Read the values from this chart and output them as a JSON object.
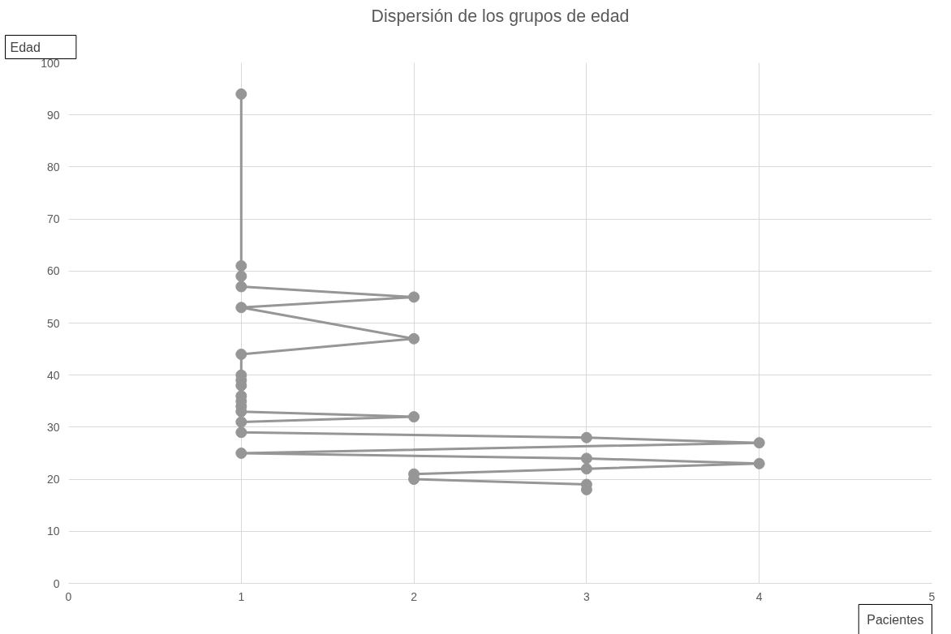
{
  "chart_data": {
    "type": "line",
    "title": "Dispersión de los grupos de edad",
    "xlabel": "Pacientes",
    "ylabel": "Edad",
    "x": [
      1,
      1,
      1,
      1,
      2,
      1,
      2,
      1,
      1,
      1,
      1,
      1,
      1,
      1,
      1,
      2,
      1,
      1,
      3,
      4,
      1,
      3,
      4,
      3,
      2,
      2,
      3,
      3
    ],
    "series": [
      {
        "color": "#969696",
        "values": [
          94,
          61,
          59,
          57,
          55,
          53,
          47,
          44,
          40,
          39,
          38,
          36,
          35,
          34,
          33,
          32,
          31,
          29,
          28,
          27,
          25,
          24,
          23,
          22,
          21,
          20,
          19,
          18
        ]
      }
    ],
    "xlim": [
      0,
      5
    ],
    "xticks": [
      0,
      1,
      2,
      3,
      4,
      5
    ],
    "ylim": [
      0,
      100
    ],
    "yticks": [
      0,
      10,
      20,
      30,
      40,
      50,
      60,
      70,
      80,
      90,
      100
    ],
    "grid": true,
    "marker": "circle",
    "line_style": "solid"
  }
}
